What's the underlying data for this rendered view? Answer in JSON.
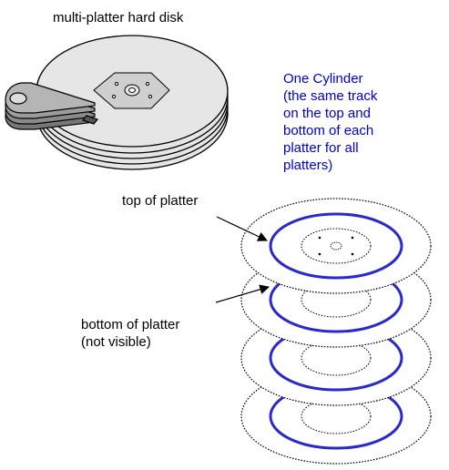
{
  "title": "multi-platter hard disk",
  "cylinder_label": [
    "One Cylinder",
    "(the same track",
    "on the top and",
    "bottom of each",
    "platter for all",
    "platters)"
  ],
  "top_label": "top of platter",
  "bottom_label": [
    "bottom of platter",
    "(not visible)"
  ],
  "colors": {
    "cylinder_text": "#0000cc",
    "track": "#2a2acc",
    "disk_fill": "#e6e6e6",
    "outline": "#000000"
  }
}
